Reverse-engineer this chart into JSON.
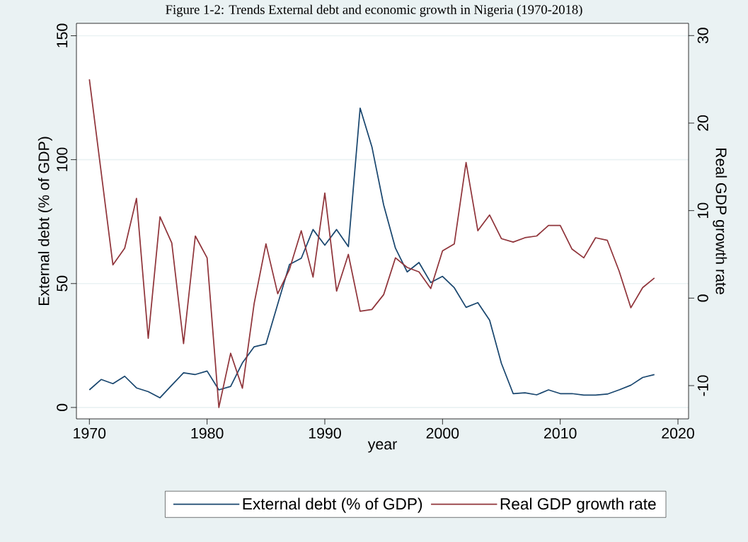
{
  "chart_data": {
    "type": "line",
    "title": "Figure 1-2: Trends External debt and economic growth in Nigeria (1970-2018)",
    "xlabel": "year",
    "ylabel": "External debt (% of GDP)",
    "y2label": "Real GDP growth rate",
    "x": [
      1970,
      1971,
      1972,
      1973,
      1974,
      1975,
      1976,
      1977,
      1978,
      1979,
      1980,
      1981,
      1982,
      1983,
      1984,
      1985,
      1986,
      1987,
      1988,
      1989,
      1990,
      1991,
      1992,
      1993,
      1994,
      1995,
      1996,
      1997,
      1998,
      1999,
      2000,
      2001,
      2002,
      2003,
      2004,
      2005,
      2006,
      2007,
      2008,
      2009,
      2010,
      2011,
      2012,
      2013,
      2014,
      2015,
      2016,
      2017,
      2018
    ],
    "series": [
      {
        "name": "External debt (% of GDP)",
        "color": "#1a476f",
        "values": [
          7.1,
          11.3,
          9.6,
          12.6,
          7.9,
          6.4,
          3.9,
          9.0,
          14.0,
          13.3,
          14.7,
          7.1,
          8.5,
          18.0,
          24.5,
          25.6,
          41.7,
          57.7,
          60.2,
          71.8,
          65.5,
          71.8,
          64.9,
          120.8,
          105.2,
          81.7,
          64.3,
          54.7,
          58.5,
          50.4,
          52.9,
          48.3,
          40.4,
          42.3,
          35.2,
          17.8,
          5.6,
          5.9,
          5.1,
          7.1,
          5.6,
          5.6,
          5.0,
          5.0,
          5.4,
          7.1,
          9.0,
          12.1,
          13.3
        ]
      },
      {
        "name": "Real GDP growth rate",
        "color": "#90353b",
        "axis": "y2",
        "values": [
          25.0,
          14.4,
          3.8,
          5.7,
          11.4,
          -4.6,
          9.3,
          6.3,
          -5.2,
          7.1,
          4.6,
          -12.5,
          -6.3,
          -10.3,
          -0.6,
          6.2,
          0.5,
          3.3,
          7.7,
          2.4,
          12.0,
          0.8,
          5.0,
          -1.5,
          -1.3,
          0.4,
          4.6,
          3.5,
          3.0,
          1.1,
          5.4,
          6.2,
          15.5,
          7.7,
          9.5,
          6.8,
          6.4,
          6.9,
          7.1,
          8.3,
          8.3,
          5.6,
          4.6,
          6.9,
          6.6,
          3.1,
          -1.1,
          1.2,
          2.3
        ]
      }
    ],
    "xlim": [
      1968.9,
      2020.9
    ],
    "xticks": [
      1970,
      1980,
      1990,
      2000,
      2010,
      2020
    ],
    "ylim": [
      -4.6,
      155
    ],
    "yticks": [
      0,
      50,
      100,
      150
    ],
    "y2lim": [
      -13.8,
      31.4
    ],
    "y2ticks": [
      -10,
      0,
      10,
      20,
      30
    ],
    "grid": "y",
    "legend": "bottom",
    "marker": "none",
    "line_style": "solid"
  }
}
